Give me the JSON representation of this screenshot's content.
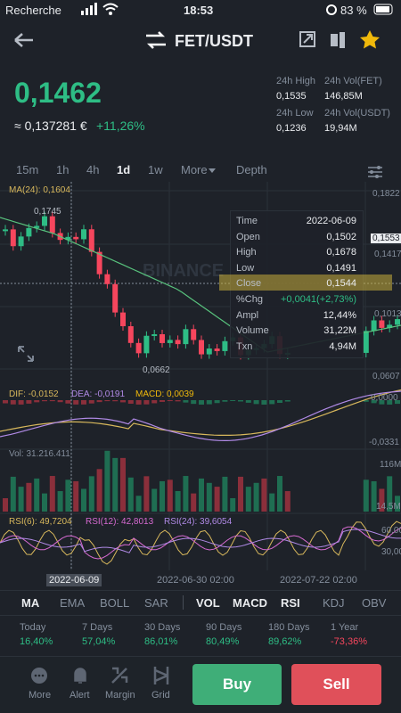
{
  "status": {
    "carrier": "Recherche",
    "time": "18:53",
    "battery": "83 %"
  },
  "header": {
    "title": "FET/USDT"
  },
  "price": {
    "last": "0,1462",
    "fiat": "≈ 0,137281 €",
    "change": "+11,26%"
  },
  "stats": [
    {
      "label": "24h High",
      "value": "0,1535"
    },
    {
      "label": "24h Vol(FET)",
      "value": "146,85M"
    },
    {
      "label": "24h Low",
      "value": "0,1236"
    },
    {
      "label": "24h Vol(USDT)",
      "value": "19,94M"
    }
  ],
  "intervals": [
    "15m",
    "1h",
    "4h",
    "1d",
    "1w",
    "More",
    "Depth"
  ],
  "main_chart": {
    "ma": "MA(24): 0,1604",
    "high_label": "0,1745",
    "low_label": "0,0662",
    "axis": [
      "0,1822",
      "0,1553",
      "0,1417",
      "0,1013",
      "0,0607"
    ],
    "watermark": "BINANCE"
  },
  "tooltip": {
    "rows": [
      [
        "Time",
        "2022-06-09"
      ],
      [
        "Open",
        "0,1502"
      ],
      [
        "High",
        "0,1678"
      ],
      [
        "Low",
        "0,1491"
      ],
      [
        "Close",
        "0,1544"
      ],
      [
        "%Chg",
        "+0,0041(+2,73%)"
      ],
      [
        "Ampl",
        "12,44%"
      ],
      [
        "Volume",
        "31,22M"
      ],
      [
        "Txn",
        "4,94M"
      ]
    ]
  },
  "macd": {
    "dif": "DIF: -0,0152",
    "dea": "DEA: -0,0191",
    "macd": "MACD: 0,0039",
    "axis": [
      "0,0000",
      "-0,0331"
    ]
  },
  "volume": {
    "label": "Vol: 31.216.411",
    "axis": [
      "116M",
      "14,5M"
    ]
  },
  "rsi": {
    "rsi6": "RSI(6): 49,7204",
    "rsi12": "RSI(12): 42,8013",
    "rsi24": "RSI(24): 39,6054",
    "axis": [
      "60,00",
      "30,00"
    ]
  },
  "dates": [
    "2022-06-09",
    "2022-06-30 02:00",
    "2022-07-22 02:00"
  ],
  "indicators": {
    "main": [
      "MA",
      "EMA",
      "BOLL",
      "SAR"
    ],
    "sub": [
      "VOL",
      "MACD",
      "RSI",
      "KDJ",
      "OBV"
    ]
  },
  "performance": [
    {
      "label": "Today",
      "value": "16,40%"
    },
    {
      "label": "7 Days",
      "value": "57,04%"
    },
    {
      "label": "30 Days",
      "value": "86,01%"
    },
    {
      "label": "90 Days",
      "value": "80,49%"
    },
    {
      "label": "180 Days",
      "value": "89,62%"
    },
    {
      "label": "1 Year",
      "value": "-73,36%"
    }
  ],
  "nav": [
    "More",
    "Alert",
    "Margin",
    "Grid"
  ],
  "actions": {
    "buy": "Buy",
    "sell": "Sell"
  }
}
